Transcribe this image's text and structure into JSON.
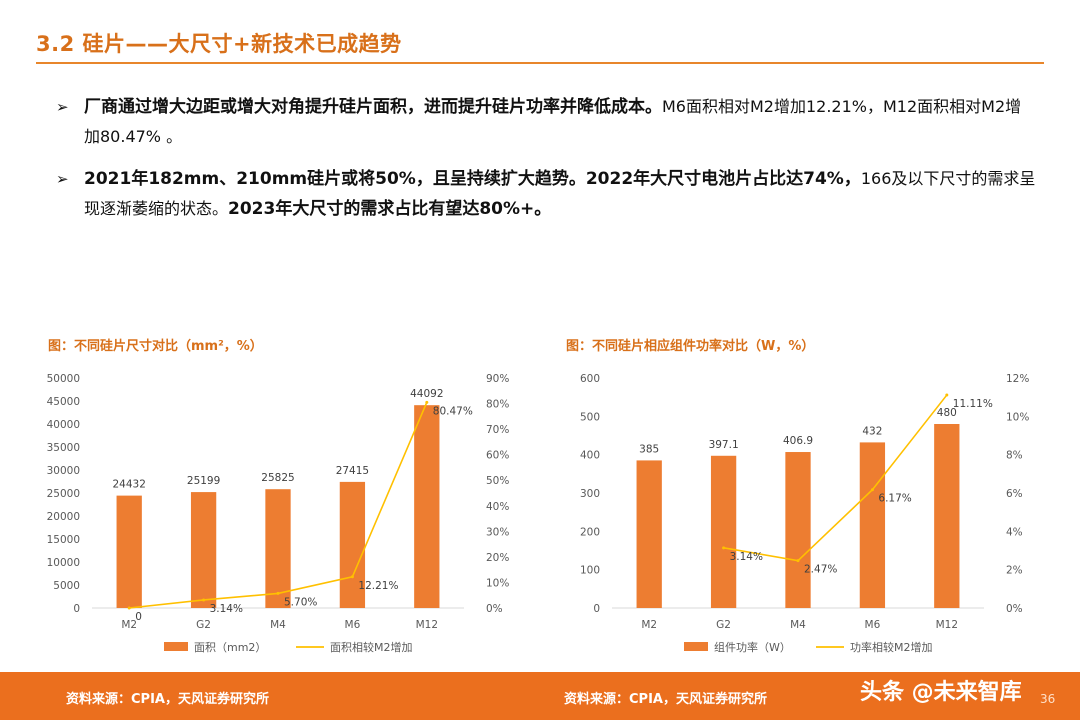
{
  "slide": {
    "title": "3.2 硅片——大尺寸+新技术已成趋势"
  },
  "bullets": [
    {
      "marker": "➢",
      "strong": "厂商通过增大边距或增大对角提升硅片面积，进而提升硅片功率并降低成本。",
      "plain": "M6面积相对M2增加12.21%，M12面积相对M2增加80.47% 。"
    },
    {
      "marker": "➢",
      "strong": "2021年182mm、210mm硅片或将50%，且呈持续扩大趋势。2022年大尺寸电池片占比达74%，",
      "plain": "166及以下尺寸的需求呈现逐渐萎缩的状态。",
      "strong2": "2023年大尺寸的需求占比有望达80%+。"
    }
  ],
  "footer": {
    "source_left": "资料来源：CPIA，天风证券研究所",
    "source_right": "资料来源：CPIA，天风证券研究所",
    "watermark": "头条 @未来智库",
    "page": "36"
  },
  "colors": {
    "accent": "#d8701a",
    "bar": "#ed7d31",
    "line": "#ffc000",
    "footer": "#eb6f1e"
  },
  "chart_data": [
    {
      "type": "bar",
      "title": "图：不同硅片尺寸对比（mm²，%）",
      "categories": [
        "M2",
        "G2",
        "M4",
        "M6",
        "M12"
      ],
      "series": [
        {
          "name": "面积（mm2）",
          "kind": "bar",
          "axis": "left",
          "values": [
            24432,
            25199,
            25825,
            27415,
            44092
          ],
          "labels": [
            "24432",
            "25199",
            "25825",
            "27415",
            "44092"
          ]
        },
        {
          "name": "面积相较M2增加",
          "kind": "line",
          "axis": "right",
          "values": [
            0,
            3.14,
            5.7,
            12.21,
            80.47
          ],
          "labels": [
            "0",
            "3.14%",
            "5.70%",
            "12.21%",
            "80.47%"
          ]
        }
      ],
      "ylim": [
        0,
        50000
      ],
      "yticks": [
        "0",
        "5000",
        "10000",
        "15000",
        "20000",
        "25000",
        "30000",
        "35000",
        "40000",
        "45000",
        "50000"
      ],
      "y2lim": [
        0,
        90
      ],
      "y2ticks": [
        "0%",
        "10%",
        "20%",
        "30%",
        "40%",
        "50%",
        "60%",
        "70%",
        "80%",
        "90%"
      ],
      "legend": "bottom"
    },
    {
      "type": "bar",
      "title": "图：不同硅片相应组件功率对比（W，%）",
      "categories": [
        "M2",
        "G2",
        "M4",
        "M6",
        "M12"
      ],
      "series": [
        {
          "name": "组件功率（W）",
          "kind": "bar",
          "axis": "left",
          "values": [
            385,
            397.1,
            406.9,
            432,
            480
          ],
          "labels": [
            "385",
            "397.1",
            "406.9",
            "432",
            "480"
          ]
        },
        {
          "name": "功率相较M2增加",
          "kind": "line",
          "axis": "right",
          "values": [
            null,
            3.14,
            2.47,
            6.17,
            11.11
          ],
          "labels": [
            "",
            "3.14%",
            "2.47%",
            "6.17%",
            "11.11%"
          ]
        }
      ],
      "ylim": [
        0,
        600
      ],
      "yticks": [
        "0",
        "100",
        "200",
        "300",
        "400",
        "500",
        "600"
      ],
      "y2lim": [
        0,
        12
      ],
      "y2ticks": [
        "0%",
        "2%",
        "4%",
        "6%",
        "8%",
        "10%",
        "12%"
      ],
      "legend": "bottom"
    }
  ]
}
